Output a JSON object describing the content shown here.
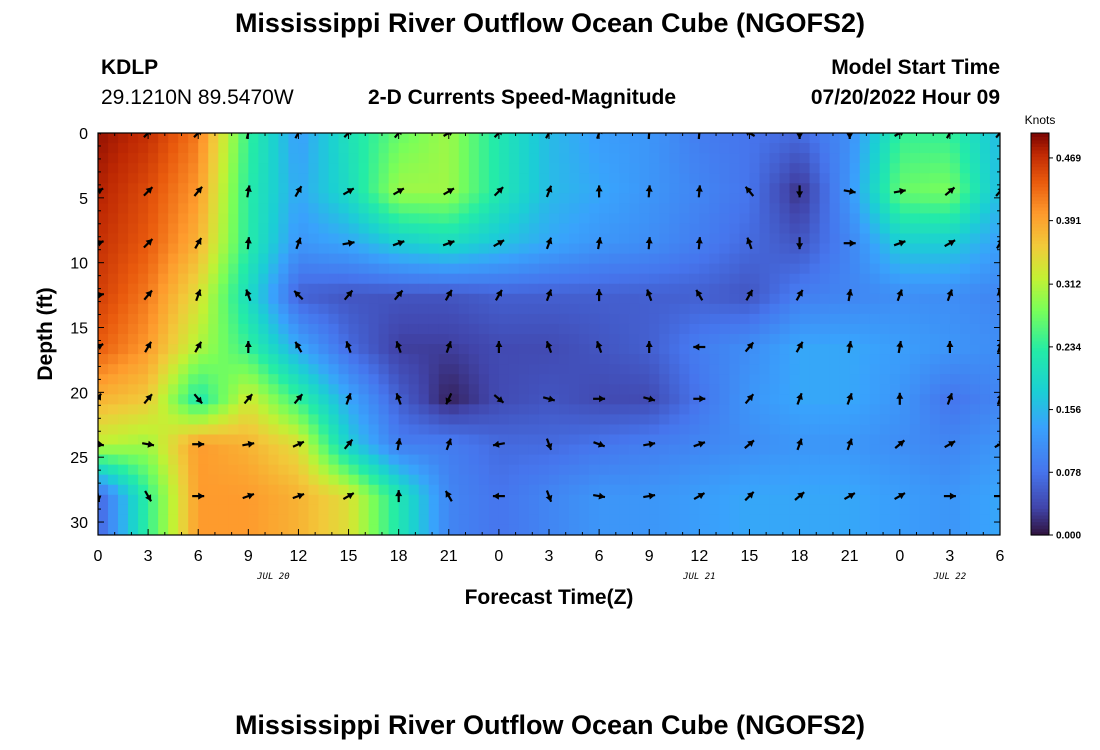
{
  "page_title": "Mississippi River Outflow Ocean Cube (NGOFS2)",
  "bottom_title": "Mississippi River Outflow Ocean Cube (NGOFS2)",
  "station": {
    "id": "KDLP",
    "coords": "29.1210N  89.5470W"
  },
  "chart_data": {
    "type": "heatmap",
    "title": "2-D Currents Speed-Magnitude",
    "model_start_label": "Model Start Time",
    "model_start_value": "07/20/2022 Hour 09",
    "xlabel": "Forecast Time(Z)",
    "ylabel": "Depth (ft)",
    "x_tick_labels": [
      "0",
      "3",
      "6",
      "9",
      "12",
      "15",
      "18",
      "21",
      "0",
      "3",
      "6",
      "9",
      "12",
      "15",
      "18",
      "21",
      "0",
      "3",
      "6"
    ],
    "x_hours": [
      0,
      3,
      6,
      9,
      12,
      15,
      18,
      21,
      24,
      27,
      30,
      33,
      36,
      39,
      42,
      45,
      48,
      51,
      54
    ],
    "date_labels": [
      {
        "text": "JUL 20",
        "hour": 10.5
      },
      {
        "text": "JUL 21",
        "hour": 36
      },
      {
        "text": "JUL 22",
        "hour": 51
      }
    ],
    "xlim": [
      0,
      54
    ],
    "ylim": [
      31,
      0
    ],
    "y_ticks": [
      0,
      5,
      10,
      15,
      20,
      25,
      30
    ],
    "colorbar": {
      "unit_label": "Knots",
      "range": [
        0,
        0.5
      ],
      "ticks": [
        "0.000",
        "0.078",
        "0.156",
        "0.234",
        "0.312",
        "0.391",
        "0.469"
      ]
    },
    "depths_ft": [
      0,
      4.5,
      8.5,
      12.5,
      16.5,
      20.5,
      24,
      28
    ],
    "grid_hours": [
      0,
      3,
      6,
      9,
      12,
      15,
      18,
      21,
      24,
      27,
      30,
      33,
      36,
      39,
      42,
      45,
      48,
      51,
      54
    ],
    "speed_knots": [
      [
        0.49,
        0.47,
        0.42,
        0.24,
        0.13,
        0.21,
        0.27,
        0.3,
        0.22,
        0.16,
        0.13,
        0.12,
        0.09,
        0.08,
        0.07,
        0.11,
        0.24,
        0.24,
        0.16
      ],
      [
        0.48,
        0.45,
        0.4,
        0.23,
        0.14,
        0.2,
        0.3,
        0.3,
        0.22,
        0.16,
        0.14,
        0.12,
        0.1,
        0.08,
        0.02,
        0.12,
        0.27,
        0.28,
        0.16
      ],
      [
        0.47,
        0.44,
        0.38,
        0.23,
        0.12,
        0.14,
        0.18,
        0.2,
        0.17,
        0.14,
        0.12,
        0.11,
        0.09,
        0.07,
        0.05,
        0.1,
        0.18,
        0.18,
        0.13
      ],
      [
        0.46,
        0.42,
        0.34,
        0.2,
        0.06,
        0.05,
        0.05,
        0.05,
        0.06,
        0.06,
        0.06,
        0.06,
        0.06,
        0.05,
        0.09,
        0.1,
        0.11,
        0.11,
        0.1
      ],
      [
        0.44,
        0.4,
        0.31,
        0.24,
        0.14,
        0.07,
        0.03,
        0.03,
        0.04,
        0.04,
        0.05,
        0.06,
        0.09,
        0.11,
        0.14,
        0.14,
        0.13,
        0.12,
        0.11
      ],
      [
        0.38,
        0.36,
        0.22,
        0.33,
        0.24,
        0.14,
        0.06,
        0.01,
        0.04,
        0.05,
        0.04,
        0.04,
        0.08,
        0.12,
        0.14,
        0.14,
        0.12,
        0.08,
        0.1
      ],
      [
        0.32,
        0.3,
        0.4,
        0.38,
        0.34,
        0.18,
        0.09,
        0.09,
        0.07,
        0.07,
        0.08,
        0.09,
        0.1,
        0.11,
        0.12,
        0.12,
        0.11,
        0.1,
        0.12
      ],
      [
        0.06,
        0.24,
        0.4,
        0.4,
        0.38,
        0.34,
        0.22,
        0.1,
        0.08,
        0.1,
        0.12,
        0.12,
        0.13,
        0.14,
        0.14,
        0.14,
        0.13,
        0.12,
        0.14
      ]
    ],
    "direction_deg": [
      [
        150,
        135,
        135,
        165,
        150,
        135,
        140,
        120,
        135,
        150,
        160,
        175,
        175,
        240,
        0,
        0,
        120,
        150,
        140
      ],
      [
        120,
        135,
        140,
        170,
        150,
        120,
        120,
        120,
        135,
        160,
        180,
        175,
        175,
        220,
        0,
        80,
        100,
        130,
        140
      ],
      [
        110,
        135,
        150,
        175,
        160,
        100,
        110,
        110,
        120,
        160,
        170,
        175,
        175,
        200,
        0,
        90,
        110,
        120,
        150
      ],
      [
        100,
        140,
        160,
        200,
        225,
        140,
        140,
        150,
        150,
        160,
        180,
        200,
        210,
        150,
        150,
        170,
        160,
        160,
        190
      ],
      [
        120,
        150,
        150,
        180,
        210,
        200,
        200,
        160,
        180,
        200,
        200,
        180,
        270,
        140,
        150,
        170,
        170,
        180,
        160
      ],
      [
        150,
        140,
        40,
        140,
        140,
        160,
        200,
        335,
        50,
        75,
        90,
        75,
        90,
        140,
        160,
        160,
        180,
        160,
        160
      ],
      [
        80,
        80,
        90,
        100,
        115,
        140,
        170,
        160,
        280,
        20,
        70,
        100,
        110,
        130,
        160,
        160,
        130,
        120,
        120
      ],
      [
        10,
        30,
        90,
        110,
        110,
        120,
        180,
        210,
        270,
        20,
        80,
        100,
        120,
        135,
        130,
        120,
        120,
        90,
        90
      ]
    ]
  }
}
